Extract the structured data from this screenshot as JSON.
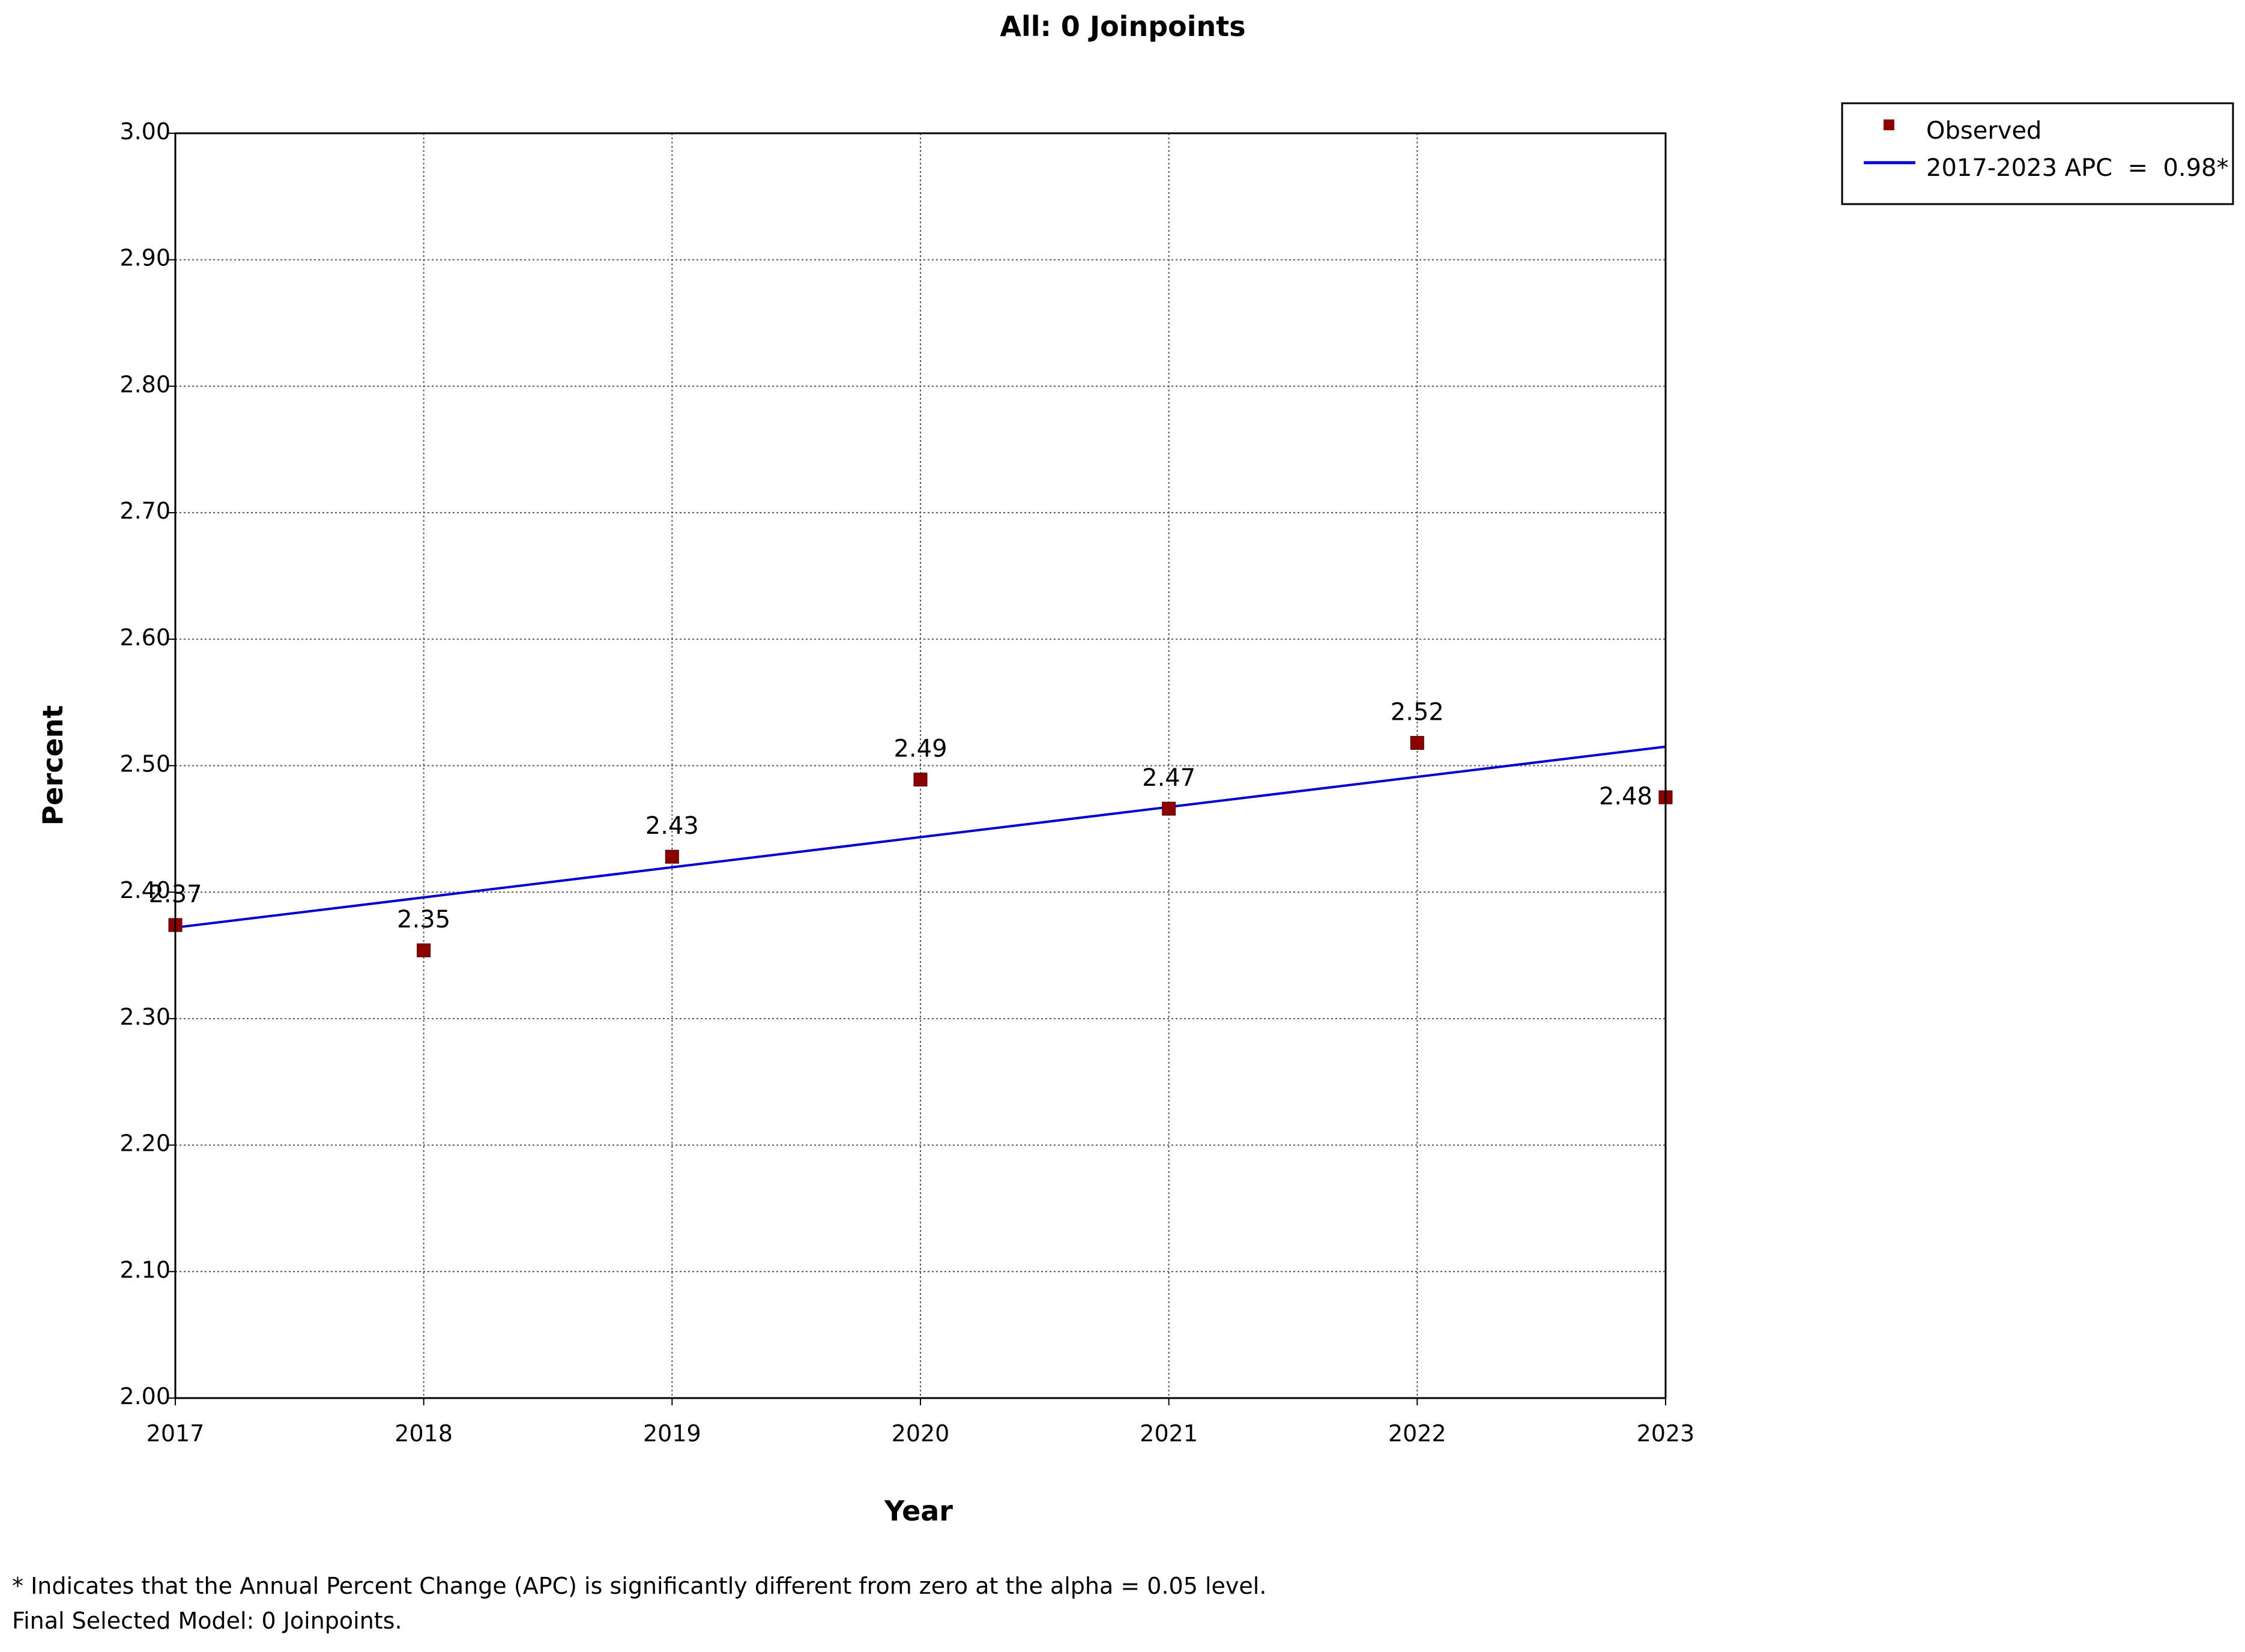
{
  "chart_data": {
    "type": "scatter",
    "title": "All: 0 Joinpoints",
    "xlabel": "Year",
    "ylabel": "Percent",
    "xlim": [
      2017,
      2023
    ],
    "ylim": [
      2.0,
      3.0
    ],
    "x_ticks": [
      "2017",
      "2018",
      "2019",
      "2020",
      "2021",
      "2022",
      "2023"
    ],
    "y_ticks": [
      "2.00",
      "2.10",
      "2.20",
      "2.30",
      "2.40",
      "2.50",
      "2.60",
      "2.70",
      "2.80",
      "2.90",
      "3.00"
    ],
    "grid": true,
    "legend_position": "top-right",
    "series": [
      {
        "name": "Observed",
        "kind": "points",
        "color": "#8B0000",
        "x": [
          2017,
          2018,
          2019,
          2020,
          2021,
          2022,
          2023
        ],
        "y": [
          2.374,
          2.354,
          2.428,
          2.489,
          2.466,
          2.518,
          2.475
        ],
        "labels": [
          "2.37",
          "2.35",
          "2.43",
          "2.49",
          "2.47",
          "2.52",
          "2.48"
        ]
      },
      {
        "name": "2017-2023 APC  =  0.98*",
        "kind": "line",
        "color": "#0000CC",
        "x": [
          2017,
          2023
        ],
        "y": [
          2.372,
          2.515
        ]
      }
    ],
    "footnotes": [
      "* Indicates that the Annual Percent Change (APC) is significantly different from zero at the alpha = 0.05 level.",
      "Final Selected Model: 0 Joinpoints."
    ]
  }
}
